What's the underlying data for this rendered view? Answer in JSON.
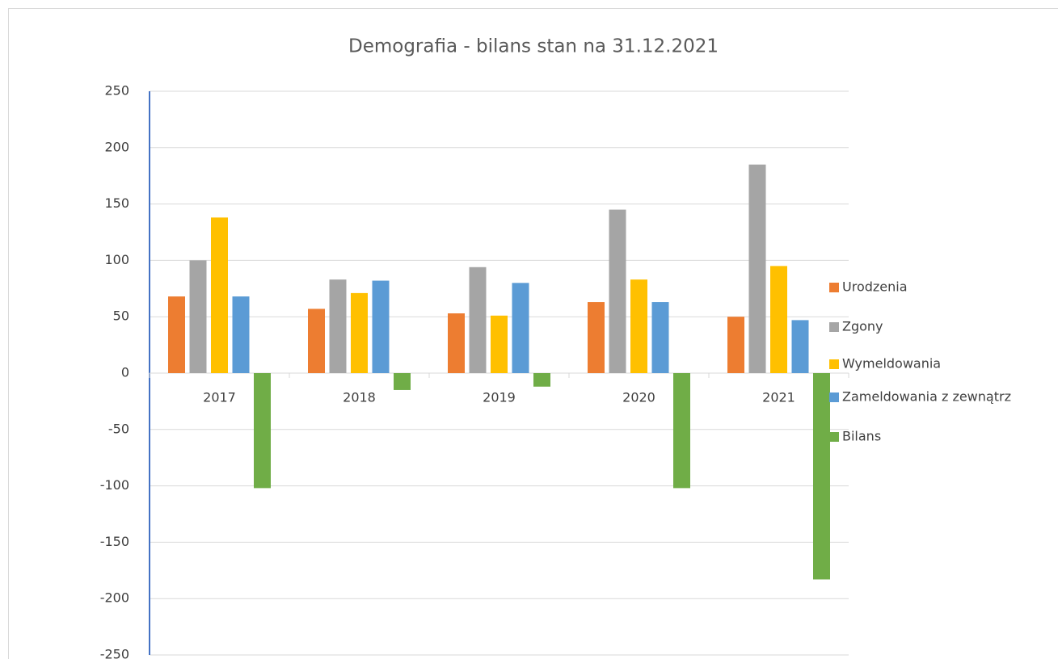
{
  "chart_data": {
    "type": "bar",
    "title": "Demografia - bilans stan na 31.12.2021",
    "categories": [
      "2017",
      "2018",
      "2019",
      "2020",
      "2021"
    ],
    "series": [
      {
        "name": "Urodzenia",
        "color": "#ed7d31",
        "values": [
          68,
          57,
          53,
          63,
          50
        ]
      },
      {
        "name": "Zgony",
        "color": "#a5a5a5",
        "values": [
          100,
          83,
          94,
          145,
          185
        ]
      },
      {
        "name": "Wymeldowania",
        "color": "#ffc000",
        "values": [
          138,
          71,
          51,
          83,
          95
        ]
      },
      {
        "name": "Zameldowania z zewnątrz",
        "color": "#5b9bd5",
        "values": [
          68,
          82,
          80,
          63,
          47
        ]
      },
      {
        "name": "Bilans",
        "color": "#70ad47",
        "values": [
          -102,
          -15,
          -12,
          -102,
          -183
        ]
      }
    ],
    "ylim": [
      -250,
      250
    ],
    "yticks": [
      -250,
      -200,
      -150,
      -100,
      -50,
      0,
      50,
      100,
      150,
      200,
      250
    ],
    "grid": true,
    "legend": "right"
  }
}
